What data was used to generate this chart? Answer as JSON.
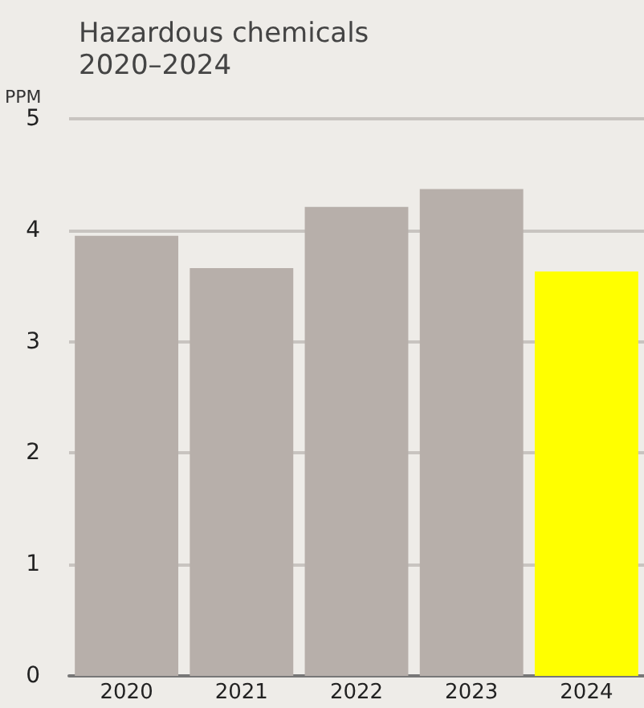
{
  "chart_data": {
    "type": "bar",
    "title": "Hazardous chemicals\n2020–2024",
    "ylabel": "PPM",
    "categories": [
      "2020",
      "2021",
      "2022",
      "2023",
      "2024"
    ],
    "values": [
      3.95,
      3.66,
      4.21,
      4.37,
      3.63
    ],
    "colors": [
      "#b7afaa",
      "#b7afaa",
      "#b7afaa",
      "#b7afaa",
      "#ffff00"
    ],
    "ylim": [
      0,
      5
    ],
    "yticks": [
      0,
      1,
      2,
      3,
      4,
      5
    ],
    "grid": "y"
  }
}
